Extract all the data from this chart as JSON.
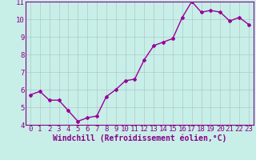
{
  "x": [
    0,
    1,
    2,
    3,
    4,
    5,
    6,
    7,
    8,
    9,
    10,
    11,
    12,
    13,
    14,
    15,
    16,
    17,
    18,
    19,
    20,
    21,
    22,
    23
  ],
  "y": [
    5.7,
    5.9,
    5.4,
    5.4,
    4.8,
    4.2,
    4.4,
    4.5,
    5.6,
    6.0,
    6.5,
    6.6,
    7.7,
    8.5,
    8.7,
    8.9,
    10.1,
    11.0,
    10.4,
    10.5,
    10.4,
    9.9,
    10.1,
    9.7
  ],
  "line_color": "#990099",
  "marker": "D",
  "marker_size": 2.0,
  "line_width": 1.0,
  "xlabel": "Windchill (Refroidissement éolien,°C)",
  "ylabel": "",
  "ylim": [
    4,
    11
  ],
  "xlim": [
    -0.5,
    23.5
  ],
  "yticks": [
    4,
    5,
    6,
    7,
    8,
    9,
    10,
    11
  ],
  "xticks": [
    0,
    1,
    2,
    3,
    4,
    5,
    6,
    7,
    8,
    9,
    10,
    11,
    12,
    13,
    14,
    15,
    16,
    17,
    18,
    19,
    20,
    21,
    22,
    23
  ],
  "bg_color": "#c8eee8",
  "grid_color": "#b0c8c8",
  "tick_label_fontsize": 6.5,
  "xlabel_fontsize": 7.0,
  "tick_color": "#880088",
  "spine_color": "#880088",
  "xlabel_color": "#880088"
}
